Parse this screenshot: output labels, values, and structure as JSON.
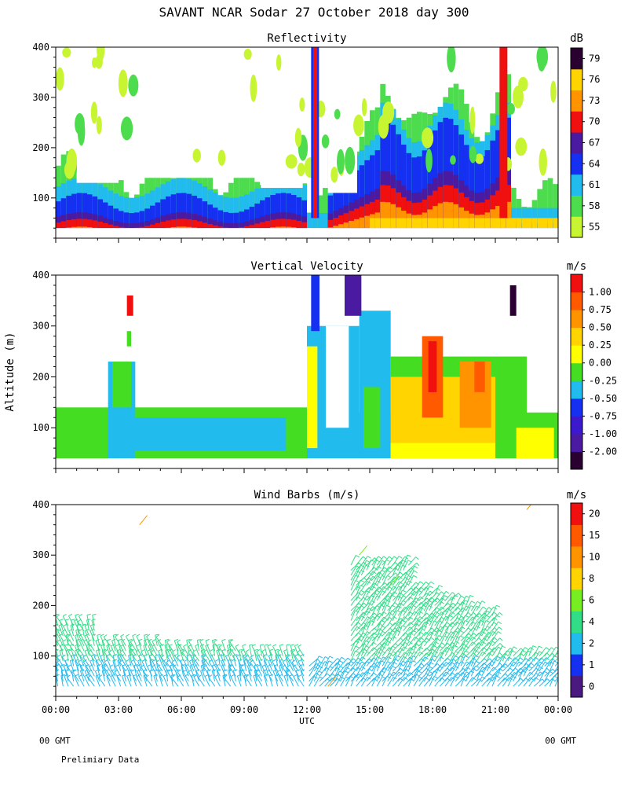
{
  "title": "SAVANT  NCAR Sodar  27 October 2018  day 300",
  "footer": {
    "left_gmt": "00 GMT",
    "right_gmt": "00 GMT",
    "note": "Prelimiary Data"
  },
  "chart_data": [
    {
      "type": "heatmap",
      "title": "Reflectivity",
      "unit": "dB",
      "ylabel": "",
      "ylim": [
        20,
        400
      ],
      "yticks": [
        100,
        200,
        300,
        400
      ],
      "xlim": [
        0,
        24
      ],
      "xtick_labels": [],
      "colorbar": {
        "labels": [
          "55",
          "58",
          "61",
          "64",
          "67",
          "70",
          "73",
          "76",
          "79"
        ],
        "colors": [
          "#c8f531",
          "#4ddc4d",
          "#22bbee",
          "#1530f0",
          "#4a1aa0",
          "#f01010",
          "#ff9400",
          "#ffd400",
          "#2a0030"
        ]
      }
    },
    {
      "type": "heatmap",
      "title": "Vertical Velocity",
      "unit": "m/s",
      "ylabel": "Altitude (m)",
      "ylim": [
        20,
        400
      ],
      "yticks": [
        100,
        200,
        300,
        400
      ],
      "xlim": [
        0,
        24
      ],
      "xtick_labels": [],
      "colorbar": {
        "labels": [
          "-2.00",
          "-1.00",
          "-0.75",
          "-0.50",
          "-0.25",
          "0.00",
          "0.25",
          "0.50",
          "0.75",
          "1.00"
        ],
        "colors": [
          "#2a0030",
          "#4a1aa0",
          "#3a1acc",
          "#1530f0",
          "#22bbee",
          "#44dd22",
          "#ffff00",
          "#ffd400",
          "#ff9400",
          "#ff5a00",
          "#f01010"
        ]
      }
    },
    {
      "type": "scatter",
      "title": "Wind Barbs (m/s)",
      "unit": "m/s",
      "ylabel": "",
      "ylim": [
        20,
        400
      ],
      "yticks": [
        100,
        200,
        300,
        400
      ],
      "xlim": [
        0,
        24
      ],
      "xtick_labels": [
        "00:00",
        "03:00",
        "06:00",
        "09:00",
        "12:00",
        "15:00",
        "18:00",
        "21:00",
        "00:00"
      ],
      "xlabel": "UTC",
      "colorbar": {
        "labels": [
          "0",
          "1",
          "2",
          "4",
          "6",
          "8",
          "10",
          "15",
          "20"
        ],
        "colors": [
          "#4a1a80",
          "#1530f0",
          "#22bbee",
          "#33dd88",
          "#77ee22",
          "#ffd400",
          "#ff9400",
          "#ff5a00",
          "#f01010"
        ]
      }
    }
  ]
}
